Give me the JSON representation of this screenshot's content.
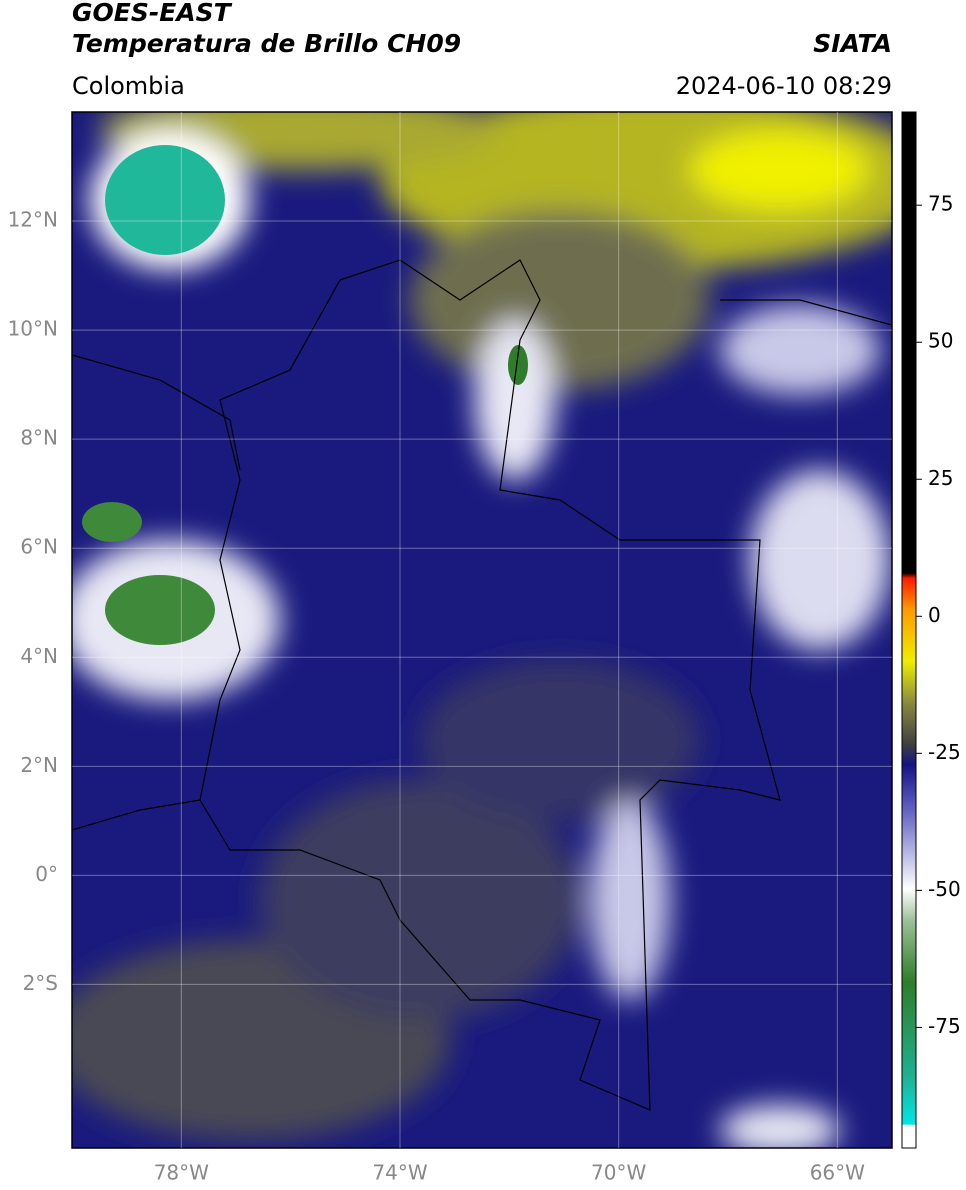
{
  "header": {
    "title": "GOES-EAST",
    "subtitle": "Temperatura de Brillo CH09",
    "source": "SIATA",
    "region": "Colombia",
    "timestamp": "2024-06-10 08:29"
  },
  "map": {
    "lon_range": [
      -80,
      -65
    ],
    "lat_range": [
      -5,
      14
    ],
    "grid": true,
    "lat_ticks": [
      {
        "value": 12,
        "label": "12°N"
      },
      {
        "value": 10,
        "label": "10°N"
      },
      {
        "value": 8,
        "label": "8°N"
      },
      {
        "value": 6,
        "label": "6°N"
      },
      {
        "value": 4,
        "label": "4°N"
      },
      {
        "value": 2,
        "label": "2°N"
      },
      {
        "value": 0,
        "label": "0°"
      },
      {
        "value": -2,
        "label": "2°S"
      }
    ],
    "lon_ticks": [
      {
        "value": -78,
        "label": "78°W"
      },
      {
        "value": -74,
        "label": "74°W"
      },
      {
        "value": -70,
        "label": "70°W"
      },
      {
        "value": -66,
        "label": "66°W"
      }
    ]
  },
  "colorbar": {
    "range": [
      -97,
      92
    ],
    "ticks": [
      75,
      50,
      25,
      0,
      -25,
      -50,
      -75
    ]
  }
}
